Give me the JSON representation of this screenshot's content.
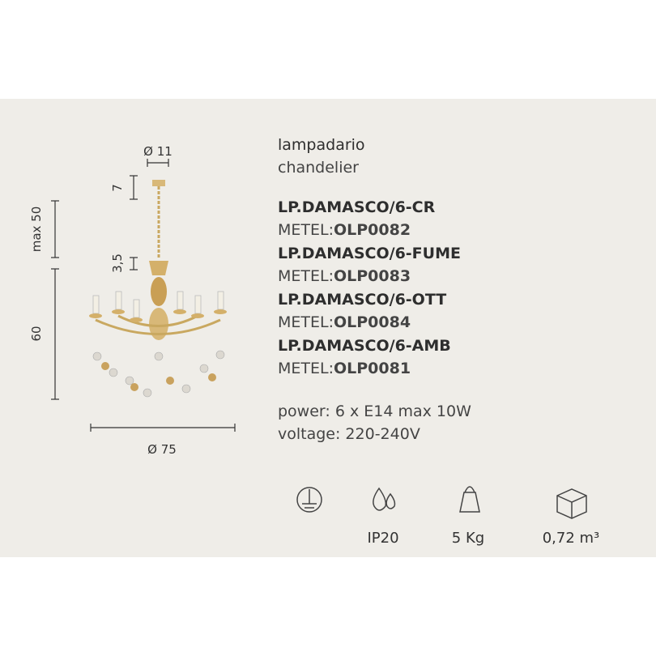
{
  "dimensions": {
    "top_diameter": "Ø 11",
    "canopy_height": "7",
    "chain_max": "max 50",
    "cup_height": "3,5",
    "body_height": "60",
    "diameter": "Ø 75"
  },
  "header": {
    "title": "lampadario",
    "subtitle": "chandelier"
  },
  "models": [
    {
      "name": "LP.DAMASCO/6-CR",
      "label": "METEL:",
      "code": "OLP0082"
    },
    {
      "name": "LP.DAMASCO/6-FUME",
      "label": "METEL:",
      "code": "OLP0083"
    },
    {
      "name": "LP.DAMASCO/6-OTT",
      "label": "METEL:",
      "code": "OLP0084"
    },
    {
      "name": "LP.DAMASCO/6-AMB",
      "label": "METEL:",
      "code": "OLP0081"
    }
  ],
  "specs": {
    "power": "power: 6 x E14 max 10W",
    "voltage": "voltage: 220-240V"
  },
  "icons": {
    "protection": "IP20",
    "weight": "5 Kg",
    "volume": "0,72 m³"
  }
}
